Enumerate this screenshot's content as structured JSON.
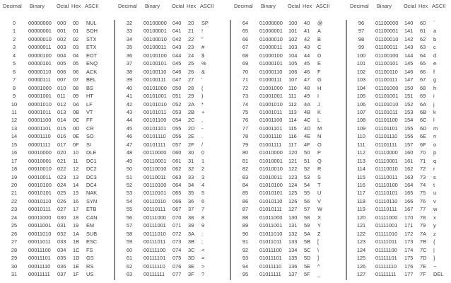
{
  "headers": [
    "Decimal",
    "Binary",
    "Octal",
    "Hex",
    "ASCII"
  ],
  "groups": [
    [
      [
        "0",
        "00000000",
        "000",
        "00",
        "NUL"
      ],
      [
        "1",
        "00000001",
        "001",
        "01",
        "SOH"
      ],
      [
        "2",
        "00000010",
        "002",
        "02",
        "STX"
      ],
      [
        "3",
        "00000011",
        "003",
        "03",
        "ETX"
      ],
      [
        "4",
        "00000100",
        "004",
        "04",
        "EOT"
      ],
      [
        "5",
        "00000101",
        "005",
        "05",
        "ENQ"
      ],
      [
        "6",
        "00000110",
        "006",
        "06",
        "ACK"
      ],
      [
        "7",
        "00000111",
        "007",
        "07",
        "BEL"
      ],
      [
        "8",
        "00001000",
        "010",
        "08",
        "BS"
      ],
      [
        "9",
        "00001001",
        "011",
        "09",
        "HT"
      ],
      [
        "10",
        "00001010",
        "012",
        "0A",
        "LF"
      ],
      [
        "11",
        "00001011",
        "013",
        "0B",
        "VT"
      ],
      [
        "12",
        "00001100",
        "014",
        "0C",
        "FF"
      ],
      [
        "13",
        "00001101",
        "015",
        "0D",
        "CR"
      ],
      [
        "14",
        "00001110",
        "016",
        "0E",
        "SO"
      ],
      [
        "15",
        "00001111",
        "017",
        "0F",
        "SI"
      ],
      [
        "16",
        "00010000",
        "020",
        "10",
        "DLE"
      ],
      [
        "17",
        "00010001",
        "021",
        "11",
        "DC1"
      ],
      [
        "18",
        "00010010",
        "022",
        "12",
        "DC2"
      ],
      [
        "19",
        "00010011",
        "023",
        "13",
        "DC3"
      ],
      [
        "20",
        "00010100",
        "024",
        "14",
        "DC4"
      ],
      [
        "21",
        "00010101",
        "025",
        "15",
        "NAK"
      ],
      [
        "22",
        "00010110",
        "026",
        "16",
        "SYN"
      ],
      [
        "23",
        "00010111",
        "027",
        "17",
        "ETB"
      ],
      [
        "24",
        "00011000",
        "030",
        "18",
        "CAN"
      ],
      [
        "25",
        "00011001",
        "031",
        "19",
        "EM"
      ],
      [
        "26",
        "00011010",
        "032",
        "1A",
        "SUB"
      ],
      [
        "27",
        "00011011",
        "033",
        "1B",
        "ESC"
      ],
      [
        "28",
        "00011100",
        "034",
        "1C",
        "FS"
      ],
      [
        "29",
        "00011101",
        "035",
        "1D",
        "GS"
      ],
      [
        "30",
        "00011110",
        "036",
        "1E",
        "RS"
      ],
      [
        "31",
        "00011111",
        "037",
        "1F",
        "US"
      ]
    ],
    [
      [
        "32",
        "00100000",
        "040",
        "20",
        "SP"
      ],
      [
        "33",
        "00100001",
        "041",
        "21",
        "!"
      ],
      [
        "34",
        "00100010",
        "042",
        "22",
        "\""
      ],
      [
        "35",
        "00100011",
        "043",
        "23",
        "#"
      ],
      [
        "36",
        "00100100",
        "044",
        "24",
        "$"
      ],
      [
        "37",
        "00100101",
        "045",
        "25",
        "%"
      ],
      [
        "38",
        "00100110",
        "046",
        "26",
        "&"
      ],
      [
        "39",
        "00100111",
        "047",
        "27",
        "'"
      ],
      [
        "40",
        "00101000",
        "050",
        "28",
        "("
      ],
      [
        "41",
        "00101001",
        "051",
        "29",
        ")"
      ],
      [
        "42",
        "00101010",
        "052",
        "2A",
        "*"
      ],
      [
        "43",
        "00101011",
        "053",
        "2B",
        "+"
      ],
      [
        "44",
        "00101100",
        "054",
        "2C",
        ","
      ],
      [
        "45",
        "00101101",
        "055",
        "2D",
        "-"
      ],
      [
        "46",
        "00101110",
        "056",
        "2E",
        "."
      ],
      [
        "47",
        "00101111",
        "057",
        "2F",
        "/"
      ],
      [
        "48",
        "00110000",
        "060",
        "30",
        "0"
      ],
      [
        "49",
        "00110001",
        "061",
        "31",
        "1"
      ],
      [
        "50",
        "00110010",
        "062",
        "32",
        "2"
      ],
      [
        "51",
        "00110011",
        "063",
        "33",
        "3"
      ],
      [
        "52",
        "00110100",
        "064",
        "34",
        "4"
      ],
      [
        "53",
        "00110101",
        "065",
        "35",
        "5"
      ],
      [
        "54",
        "00110110",
        "066",
        "36",
        "6"
      ],
      [
        "55",
        "00110111",
        "067",
        "37",
        "7"
      ],
      [
        "56",
        "00111000",
        "070",
        "38",
        "8"
      ],
      [
        "57",
        "00111001",
        "071",
        "39",
        "9"
      ],
      [
        "58",
        "00111010",
        "072",
        "3A",
        ":"
      ],
      [
        "59",
        "00111011",
        "073",
        "3B",
        ";"
      ],
      [
        "60",
        "00111100",
        "074",
        "3C",
        "<"
      ],
      [
        "61",
        "00111101",
        "075",
        "3D",
        "="
      ],
      [
        "62",
        "00111110",
        "076",
        "3E",
        ">"
      ],
      [
        "63",
        "00111111",
        "077",
        "3F",
        "?"
      ]
    ],
    [
      [
        "64",
        "01000000",
        "100",
        "40",
        "@"
      ],
      [
        "65",
        "01000001",
        "101",
        "41",
        "A"
      ],
      [
        "66",
        "01000010",
        "102",
        "42",
        "B"
      ],
      [
        "67",
        "01000011",
        "103",
        "43",
        "C"
      ],
      [
        "68",
        "01000100",
        "104",
        "44",
        "D"
      ],
      [
        "69",
        "01000101",
        "105",
        "45",
        "E"
      ],
      [
        "70",
        "01000110",
        "106",
        "46",
        "F"
      ],
      [
        "71",
        "01000111",
        "107",
        "47",
        "G"
      ],
      [
        "72",
        "01001000",
        "110",
        "48",
        "H"
      ],
      [
        "73",
        "01001001",
        "111",
        "49",
        "I"
      ],
      [
        "74",
        "01001010",
        "112",
        "4A",
        "J"
      ],
      [
        "75",
        "01001011",
        "113",
        "4B",
        "K"
      ],
      [
        "76",
        "01001100",
        "114",
        "4C",
        "L"
      ],
      [
        "77",
        "01001101",
        "115",
        "4D",
        "M"
      ],
      [
        "78",
        "01001110",
        "116",
        "4E",
        "N"
      ],
      [
        "79",
        "01001111",
        "117",
        "4F",
        "O"
      ],
      [
        "80",
        "01010000",
        "120",
        "50",
        "P"
      ],
      [
        "81",
        "01010001",
        "121",
        "51",
        "Q"
      ],
      [
        "82",
        "01010010",
        "122",
        "52",
        "R"
      ],
      [
        "83",
        "01010011",
        "123",
        "53",
        "S"
      ],
      [
        "84",
        "01010100",
        "124",
        "54",
        "T"
      ],
      [
        "85",
        "01010101",
        "125",
        "55",
        "U"
      ],
      [
        "86",
        "01010110",
        "126",
        "56",
        "V"
      ],
      [
        "87",
        "01010111",
        "127",
        "57",
        "W"
      ],
      [
        "88",
        "01011000",
        "130",
        "58",
        "X"
      ],
      [
        "89",
        "01011001",
        "131",
        "59",
        "Y"
      ],
      [
        "90",
        "01011010",
        "132",
        "5A",
        "Z"
      ],
      [
        "91",
        "01011011",
        "133",
        "5B",
        "["
      ],
      [
        "92",
        "01011100",
        "134",
        "5C",
        "\\"
      ],
      [
        "93",
        "01011101",
        "135",
        "5D",
        "]"
      ],
      [
        "94",
        "01011110",
        "136",
        "5E",
        "^"
      ],
      [
        "95",
        "01011111",
        "137",
        "5F",
        "_"
      ]
    ],
    [
      [
        "96",
        "01100000",
        "140",
        "60",
        "`"
      ],
      [
        "97",
        "01100001",
        "141",
        "61",
        "a"
      ],
      [
        "98",
        "01100010",
        "142",
        "62",
        "b"
      ],
      [
        "99",
        "01100011",
        "143",
        "63",
        "c"
      ],
      [
        "100",
        "01100100",
        "144",
        "64",
        "d"
      ],
      [
        "101",
        "01100101",
        "145",
        "65",
        "e"
      ],
      [
        "102",
        "01100110",
        "146",
        "66",
        "f"
      ],
      [
        "103",
        "01100111",
        "147",
        "67",
        "g"
      ],
      [
        "104",
        "01101000",
        "150",
        "68",
        "h"
      ],
      [
        "105",
        "01101001",
        "151",
        "69",
        "i"
      ],
      [
        "106",
        "01101010",
        "152",
        "6A",
        "j"
      ],
      [
        "107",
        "01101011",
        "153",
        "6B",
        "k"
      ],
      [
        "108",
        "01101100",
        "154",
        "6C",
        "l"
      ],
      [
        "109",
        "01101101",
        "155",
        "6D",
        "m"
      ],
      [
        "110",
        "01101110",
        "156",
        "6E",
        "n"
      ],
      [
        "111",
        "01101111",
        "157",
        "6F",
        "o"
      ],
      [
        "112",
        "01110000",
        "160",
        "70",
        "p"
      ],
      [
        "113",
        "01110001",
        "161",
        "71",
        "q"
      ],
      [
        "114",
        "01110010",
        "162",
        "72",
        "r"
      ],
      [
        "115",
        "01110011",
        "163",
        "73",
        "s"
      ],
      [
        "116",
        "01110100",
        "164",
        "74",
        "t"
      ],
      [
        "117",
        "01110101",
        "165",
        "75",
        "u"
      ],
      [
        "118",
        "01110110",
        "166",
        "76",
        "v"
      ],
      [
        "119",
        "01110111",
        "167",
        "77",
        "w"
      ],
      [
        "120",
        "01111000",
        "170",
        "78",
        "x"
      ],
      [
        "121",
        "01111001",
        "171",
        "79",
        "y"
      ],
      [
        "122",
        "01111010",
        "172",
        "7A",
        "z"
      ],
      [
        "123",
        "01111011",
        "173",
        "7B",
        "{"
      ],
      [
        "124",
        "01111100",
        "174",
        "7C",
        "|"
      ],
      [
        "125",
        "01111101",
        "175",
        "7D",
        "}"
      ],
      [
        "126",
        "01111110",
        "176",
        "7E",
        "~"
      ],
      [
        "127",
        "01111111",
        "177",
        "7F",
        "DEL"
      ]
    ]
  ]
}
